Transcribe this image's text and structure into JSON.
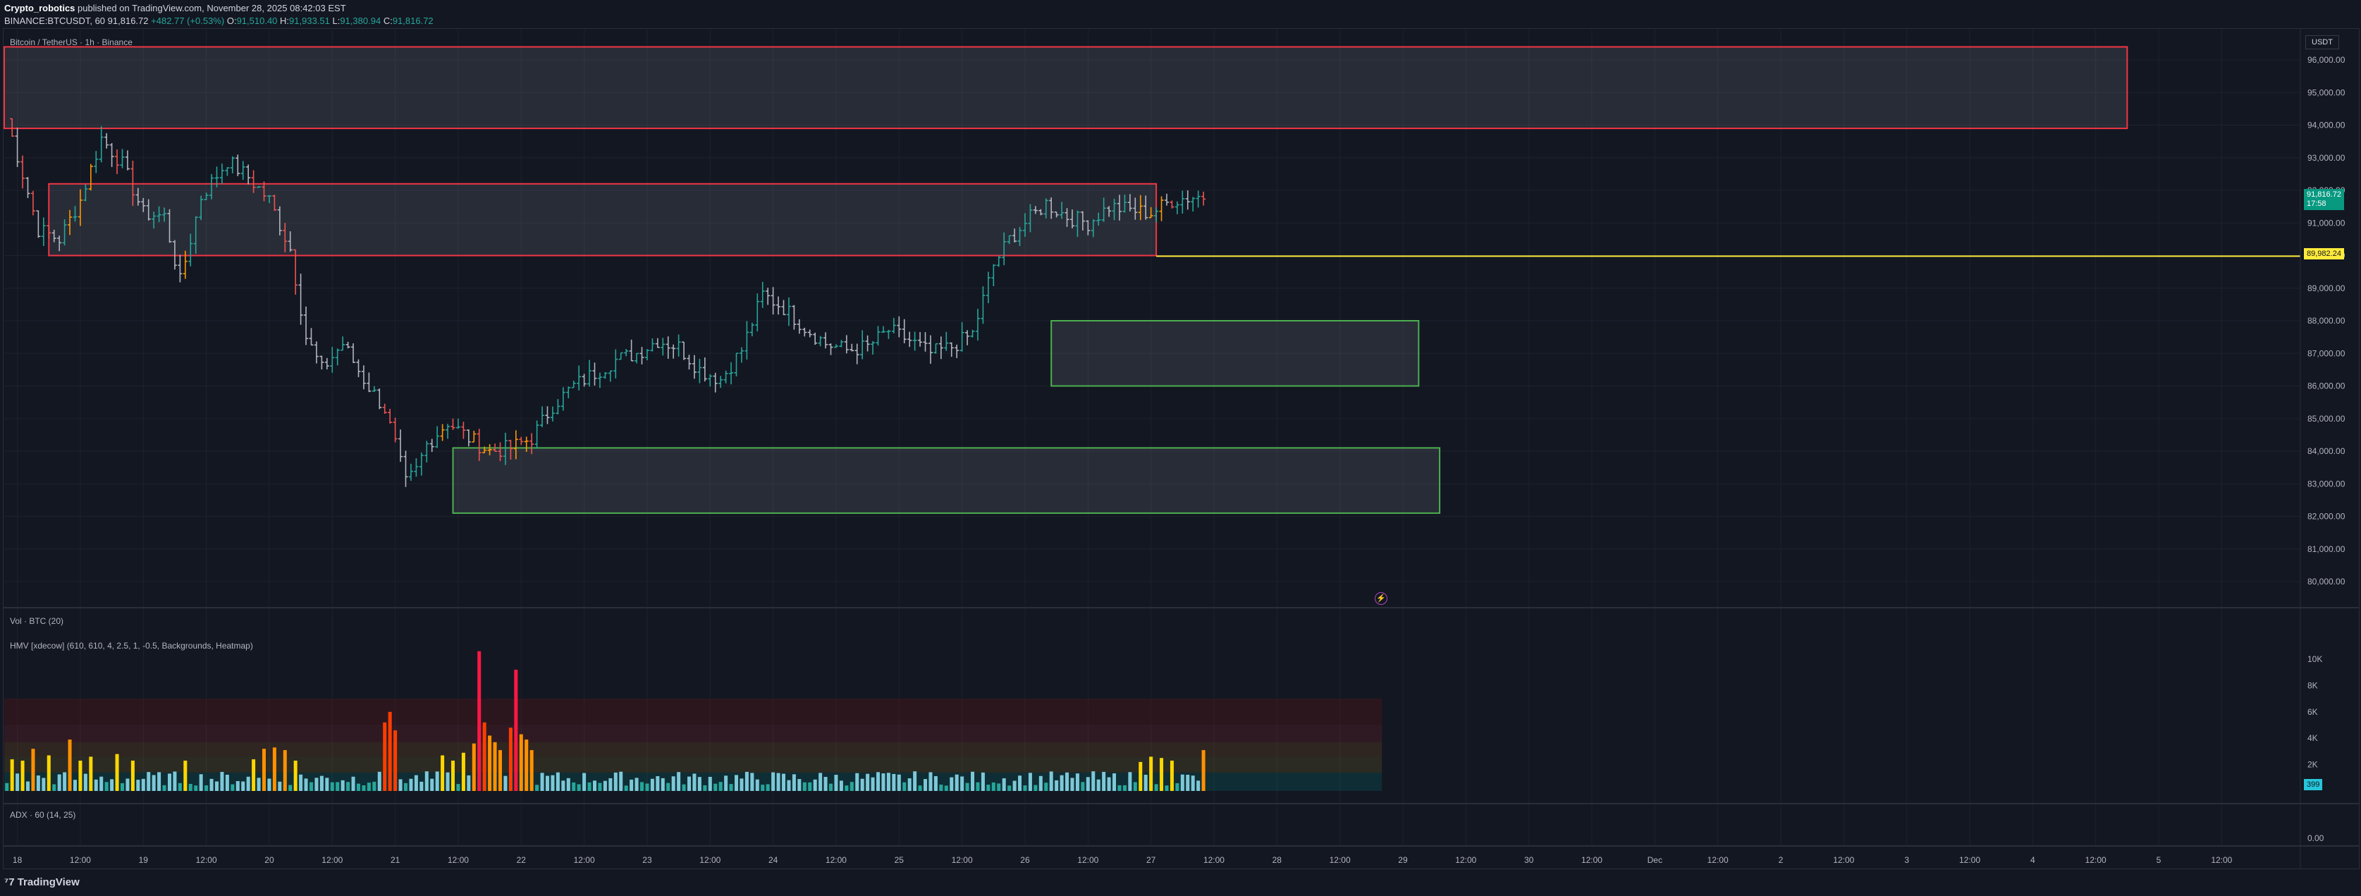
{
  "header": {
    "author": "Crypto_robotics",
    "published": " published on TradingView.com, November 28, 2025 08:42:03 EST",
    "symbol": "BINANCE:BTCUSDT, 60",
    "last": "91,816.72",
    "change": "+482.77 (+0.53%)",
    "o_label": "O:",
    "o": "91,510.40",
    "h_label": "H:",
    "h": "91,933.51",
    "l_label": "L:",
    "l": "91,380.94",
    "c_label": "C:",
    "c": "91,816.72"
  },
  "pane_title": "Bitcoin / TetherUS · 1h · Binance",
  "currency": "USDT",
  "vol_label": "Vol · BTC (20)",
  "hmv_label": "HMV [xdecow] (610, 610, 4, 2.5, 1, -0.5, Backgrounds, Heatmap)",
  "adx_label": "ADX · 60 (14, 25)",
  "brand": "TradingView",
  "colors": {
    "up": "#26a69a",
    "down": "#ef5350",
    "highlight": "#ffeb3b",
    "box_red": "#f23645",
    "box_green": "#4caf50"
  },
  "tags": {
    "last_price": "91,816.72",
    "countdown": "17:58",
    "level": "89,982.24",
    "hmv_value": "399",
    "adx_value": "0.00"
  },
  "chart_data": [
    {
      "type": "ohlc",
      "title": "Bitcoin / TetherUS · 1h · Binance",
      "ylim": [
        79500,
        96000
      ],
      "y_ticks": [
        "96,000.00",
        "95,000.00",
        "94,000.00",
        "93,000.00",
        "92,000.00",
        "91,000.00",
        "90,000.00",
        "89,000.00",
        "88,000.00",
        "87,000.00",
        "86,000.00",
        "85,000.00",
        "84,000.00",
        "83,000.00",
        "82,000.00",
        "81,000.00",
        "80,000.00"
      ],
      "y_tick_values": [
        96000,
        95000,
        94000,
        93000,
        92000,
        91000,
        90000,
        89000,
        88000,
        87000,
        86000,
        85000,
        84000,
        83000,
        82000,
        81000,
        80000
      ],
      "x_tick_labels": [
        "18",
        "12:00",
        "19",
        "12:00",
        "20",
        "12:00",
        "21",
        "12:00",
        "22",
        "12:00",
        "23",
        "12:00",
        "24",
        "12:00",
        "25",
        "12:00",
        "26",
        "12:00",
        "27",
        "12:00",
        "28",
        "12:00",
        "29",
        "12:00",
        "30",
        "12:00",
        "Dec",
        "12:00",
        "2",
        "12:00",
        "3",
        "12:00",
        "4",
        "12:00",
        "5",
        "12:00"
      ],
      "x_tick_hours": [
        0,
        12,
        24,
        36,
        48,
        60,
        72,
        84,
        96,
        108,
        120,
        132,
        144,
        156,
        168,
        180,
        192,
        204,
        216,
        228,
        240,
        252,
        264,
        276,
        288,
        300,
        312,
        324,
        336,
        348,
        360,
        372,
        384,
        396,
        408,
        420
      ],
      "x_start_hour": -2.5,
      "x_end_hour": 435,
      "anchors": [
        [
          -2,
          94200
        ],
        [
          1,
          92500
        ],
        [
          4,
          90800
        ],
        [
          8,
          90500
        ],
        [
          12,
          91700
        ],
        [
          16,
          93600
        ],
        [
          20,
          92800
        ],
        [
          24,
          91300
        ],
        [
          28,
          91200
        ],
        [
          31,
          89200
        ],
        [
          35,
          91800
        ],
        [
          40,
          92900
        ],
        [
          44,
          92400
        ],
        [
          48,
          91700
        ],
        [
          52,
          90200
        ],
        [
          55,
          87500
        ],
        [
          58,
          86500
        ],
        [
          62,
          87300
        ],
        [
          66,
          86200
        ],
        [
          70,
          85300
        ],
        [
          72,
          84200
        ],
        [
          74,
          83000
        ],
        [
          76,
          83400
        ],
        [
          78,
          84200
        ],
        [
          82,
          84900
        ],
        [
          86,
          84400
        ],
        [
          90,
          84000
        ],
        [
          94,
          84100
        ],
        [
          98,
          84400
        ],
        [
          102,
          85400
        ],
        [
          106,
          86000
        ],
        [
          110,
          86400
        ],
        [
          114,
          86800
        ],
        [
          118,
          87000
        ],
        [
          122,
          87400
        ],
        [
          126,
          87200
        ],
        [
          130,
          86500
        ],
        [
          134,
          86200
        ],
        [
          138,
          87100
        ],
        [
          142,
          88800
        ],
        [
          146,
          88400
        ],
        [
          150,
          87800
        ],
        [
          154,
          87300
        ],
        [
          158,
          87100
        ],
        [
          162,
          87200
        ],
        [
          166,
          87700
        ],
        [
          170,
          87400
        ],
        [
          174,
          87000
        ],
        [
          178,
          87200
        ],
        [
          182,
          87600
        ],
        [
          186,
          89700
        ],
        [
          189,
          90500
        ],
        [
          192,
          91000
        ],
        [
          196,
          91600
        ],
        [
          200,
          91200
        ],
        [
          204,
          91000
        ],
        [
          208,
          91500
        ],
        [
          212,
          91400
        ],
        [
          216,
          91300
        ],
        [
          220,
          91700
        ],
        [
          224,
          91800
        ],
        [
          226,
          91816
        ]
      ],
      "boxes": [
        {
          "name": "resistance-box-upper",
          "t0": -2.5,
          "t1": 402,
          "y0": 93900,
          "y1": 96500,
          "color": "red"
        },
        {
          "name": "resistance-box-mid",
          "t0": 6,
          "t1": 217,
          "y0": 90000,
          "y1": 92200,
          "color": "red"
        },
        {
          "name": "support-box-mid",
          "t0": 197,
          "t1": 267,
          "y0": 86000,
          "y1": 88000,
          "color": "green"
        },
        {
          "name": "support-box-low",
          "t0": 83,
          "t1": 271,
          "y0": 82100,
          "y1": 84100,
          "color": "green"
        }
      ],
      "level_line": {
        "value": 89982.24,
        "t0": 217,
        "t1": 435
      }
    },
    {
      "type": "bar",
      "title": "HMV [xdecow] (610, 610, 4, 2.5, 1, -0.5, Backgrounds, Heatmap)",
      "ylim": [
        0,
        11000
      ],
      "y_ticks": [
        "10K",
        "8K",
        "6K",
        "4K",
        "2K"
      ],
      "y_tick_values": [
        10000,
        8000,
        6000,
        4000,
        2000
      ],
      "spikes": [
        [
          -1,
          2400
        ],
        [
          1,
          2300
        ],
        [
          3,
          3200
        ],
        [
          6,
          2700
        ],
        [
          10,
          3900
        ],
        [
          12,
          2300
        ],
        [
          14,
          2600
        ],
        [
          19,
          2800
        ],
        [
          22,
          2300
        ],
        [
          32,
          2300
        ],
        [
          45,
          2400
        ],
        [
          47,
          3200
        ],
        [
          49,
          3300
        ],
        [
          51,
          3100
        ],
        [
          53,
          2300
        ],
        [
          70,
          5200
        ],
        [
          71,
          6000
        ],
        [
          72,
          4600
        ],
        [
          81,
          2700
        ],
        [
          83,
          2300
        ],
        [
          85,
          2900
        ],
        [
          87,
          3600
        ],
        [
          88,
          10600
        ],
        [
          89,
          5200
        ],
        [
          90,
          4200
        ],
        [
          91,
          3700
        ],
        [
          92,
          3100
        ],
        [
          94,
          4800
        ],
        [
          95,
          9200
        ],
        [
          96,
          4300
        ],
        [
          97,
          3900
        ],
        [
          98,
          3100
        ],
        [
          214,
          2200
        ],
        [
          216,
          2600
        ],
        [
          218,
          2500
        ],
        [
          220,
          2300
        ],
        [
          226,
          3100
        ]
      ],
      "max_hour": 260
    }
  ]
}
